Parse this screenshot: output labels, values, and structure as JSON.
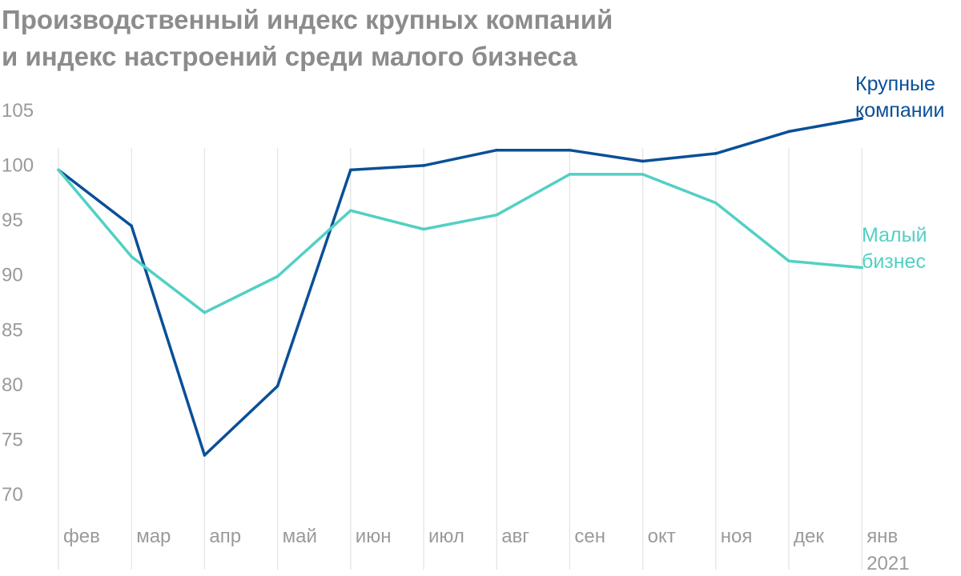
{
  "title": {
    "line1": "Производственный индекс крупных компаний",
    "line2": "и индекс настроений среди малого бизнеса"
  },
  "chart_data": {
    "type": "line",
    "categories": [
      "фев",
      "мар",
      "апр",
      "май",
      "июн",
      "июл",
      "авг",
      "сен",
      "окт",
      "ноя",
      "дек",
      "янв"
    ],
    "year_label": "2021",
    "ylim": [
      70,
      105
    ],
    "yticks": [
      70,
      75,
      80,
      85,
      90,
      95,
      100,
      105
    ],
    "grid": "vertical",
    "series": [
      {
        "name_lines": [
          "Крупные",
          "компании"
        ],
        "color": "#0a4f97",
        "values": [
          99.5,
          94.4,
          73.5,
          79.8,
          99.5,
          99.9,
          101.3,
          101.3,
          100.3,
          101.0,
          103.0,
          104.2
        ]
      },
      {
        "name_lines": [
          "Малый",
          "бизнес"
        ],
        "color": "#52d0c4",
        "values": [
          99.5,
          91.6,
          86.5,
          89.8,
          95.8,
          94.1,
          95.4,
          99.1,
          99.1,
          96.5,
          91.2,
          90.6
        ]
      }
    ]
  }
}
